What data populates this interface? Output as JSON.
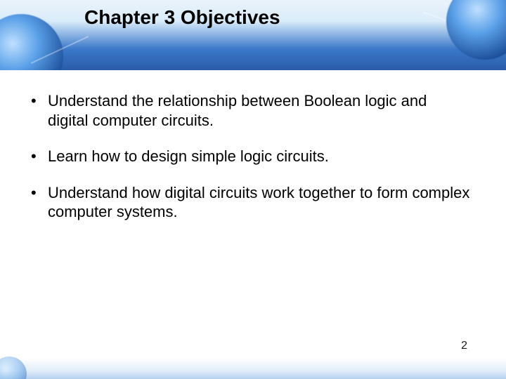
{
  "slide": {
    "title": "Chapter 3 Objectives",
    "title_fontsize": 28,
    "title_color": "#000000",
    "bullets": [
      "Understand the relationship between Boolean logic and digital computer circuits.",
      "Learn how to design simple logic circuits.",
      "Understand how digital circuits work together to form complex computer systems."
    ],
    "bullet_fontsize": 22,
    "bullet_color": "#000000",
    "page_number": "2",
    "background_color": "#ffffff",
    "header_gradient": [
      "#eaf3fb",
      "#d9ecfa",
      "#3a78c9",
      "#2a5ca8"
    ],
    "accent_orb_colors": [
      "#bfe0ff",
      "#5aa0e8",
      "#1d4f9a"
    ],
    "footer_gradient": [
      "rgba(205,228,248,0)",
      "rgba(170,205,240,0.35)",
      "rgba(120,170,225,0.55)"
    ]
  }
}
